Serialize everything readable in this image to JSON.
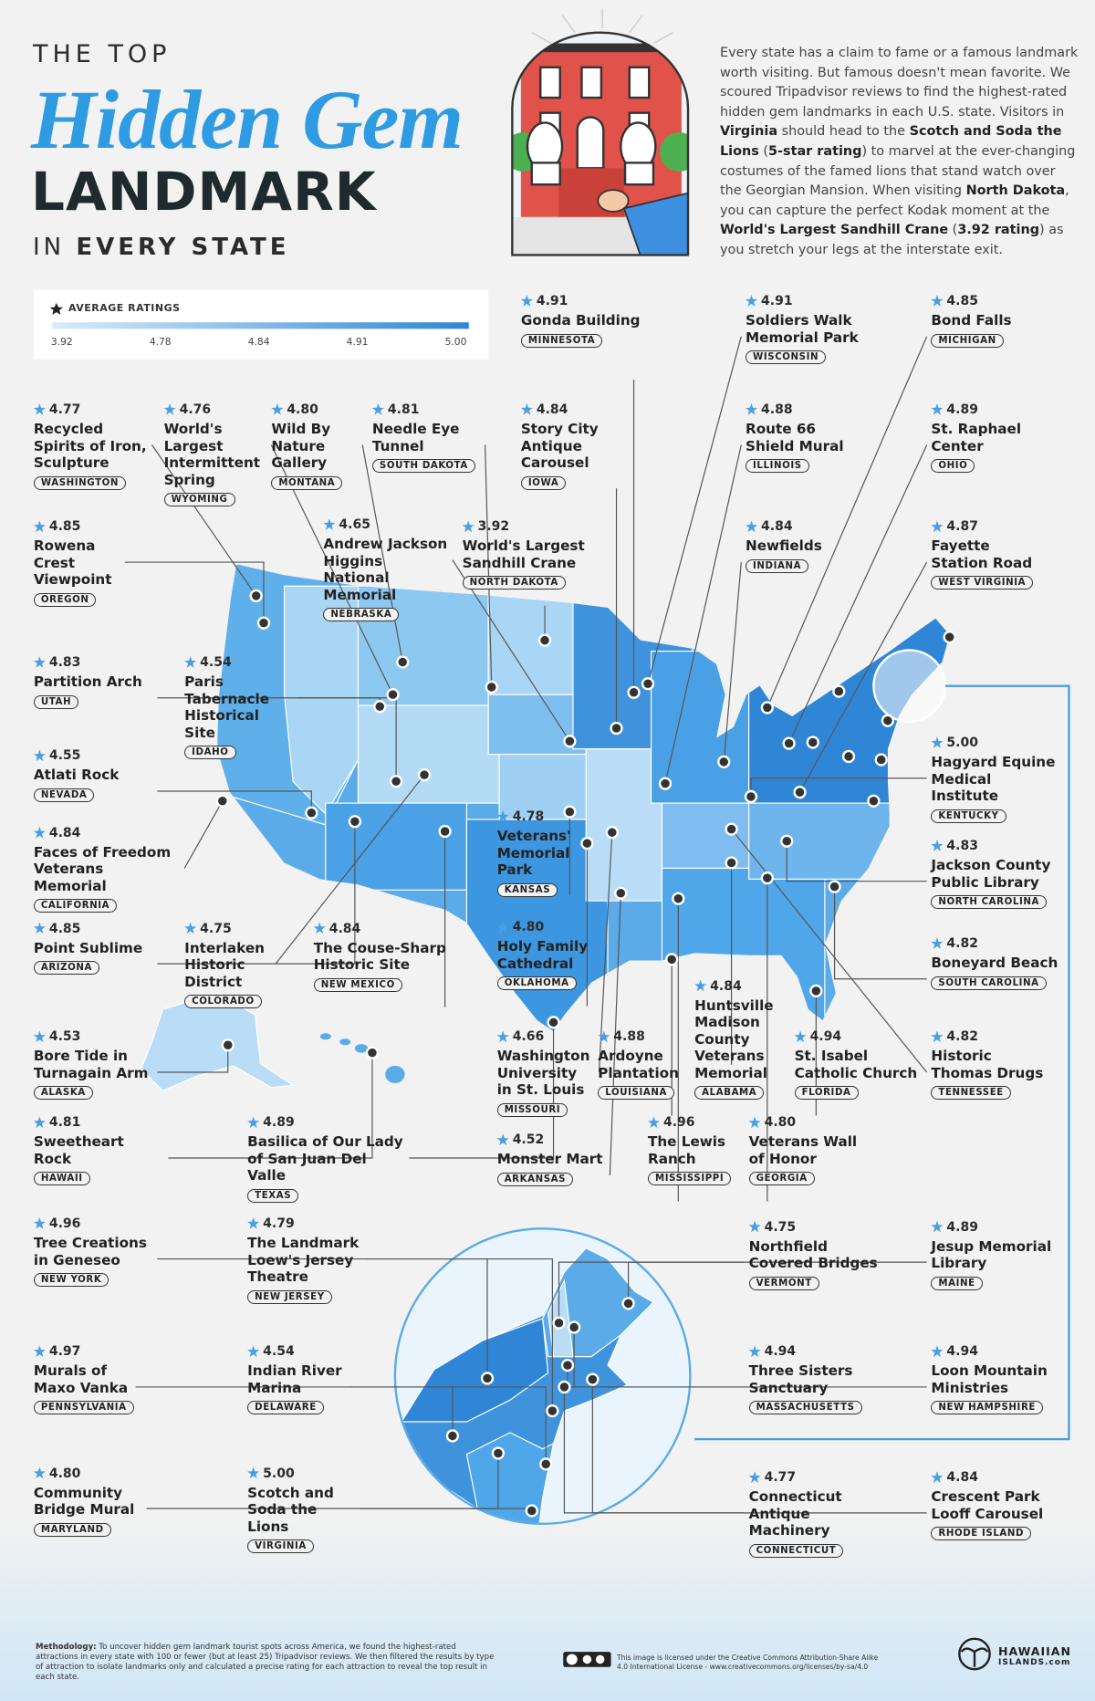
{
  "header": {
    "title_top": "THE TOP",
    "title_script": "Hidden Gem",
    "title_main": "LANDMARK",
    "title_in": "IN",
    "title_bold": "EVERY STATE"
  },
  "intro": [
    {
      "text": "Every state has a claim to fame or a famous landmark worth visiting. But famous doesn't mean favorite. We scoured Tripadvisor reviews to find the highest-rated hidden gem landmarks in each U.S. state. Visitors in ",
      "bold": false
    },
    {
      "text": "Virginia",
      "bold": true
    },
    {
      "text": " should head to the ",
      "bold": false
    },
    {
      "text": "Scotch and Soda the Lions",
      "bold": true
    },
    {
      "text": " (",
      "bold": false
    },
    {
      "text": "5-star rating",
      "bold": true
    },
    {
      "text": ") to marvel at the ever-changing costumes of the famed lions that stand watch over the Georgian Mansion. When visiting ",
      "bold": false
    },
    {
      "text": "North Dakota",
      "bold": true
    },
    {
      "text": ", you can capture the perfect Kodak moment at the ",
      "bold": false
    },
    {
      "text": "World's Largest Sandhill Crane",
      "bold": true
    },
    {
      "text": " (",
      "bold": false
    },
    {
      "text": "3.92 rating",
      "bold": true
    },
    {
      "text": ") as you stretch your legs at the interstate exit.",
      "bold": false
    }
  ],
  "legend": {
    "title": "AVERAGE RATINGS",
    "ticks": [
      "3.92",
      "4.78",
      "4.84",
      "4.91",
      "5.00"
    ]
  },
  "entries": [
    {
      "rating": "4.91",
      "name": "Gonda Building",
      "state": "MINNESOTA"
    },
    {
      "rating": "4.91",
      "name": "Soldiers Walk Memorial Park",
      "state": "WISCONSIN"
    },
    {
      "rating": "4.85",
      "name": "Bond Falls",
      "state": "MICHIGAN"
    },
    {
      "rating": "4.77",
      "name": "Recycled Spirits of Iron, Sculpture",
      "state": "WASHINGTON"
    },
    {
      "rating": "4.76",
      "name": "World's Largest Intermittent Spring",
      "state": "WYOMING"
    },
    {
      "rating": "4.80",
      "name": "Wild By Nature Gallery",
      "state": "MONTANA"
    },
    {
      "rating": "4.81",
      "name": "Needle Eye Tunnel",
      "state": "SOUTH DAKOTA"
    },
    {
      "rating": "4.84",
      "name": "Story City Antique Carousel",
      "state": "IOWA"
    },
    {
      "rating": "4.88",
      "name": "Route 66 Shield Mural",
      "state": "ILLINOIS"
    },
    {
      "rating": "4.89",
      "name": "St. Raphael Center",
      "state": "OHIO"
    },
    {
      "rating": "4.85",
      "name": "Rowena Crest Viewpoint",
      "state": "OREGON"
    },
    {
      "rating": "4.65",
      "name": "Andrew Jackson Higgins National Memorial",
      "state": "NEBRASKA"
    },
    {
      "rating": "3.92",
      "name": "World's Largest Sandhill Crane",
      "state": "NORTH DAKOTA"
    },
    {
      "rating": "4.84",
      "name": "Newfields",
      "state": "INDIANA"
    },
    {
      "rating": "4.87",
      "name": "Fayette Station Road",
      "state": "WEST VIRGINIA"
    },
    {
      "rating": "4.83",
      "name": "Partition Arch",
      "state": "UTAH"
    },
    {
      "rating": "4.54",
      "name": "Paris Tabernacle Historical Site",
      "state": "IDAHO"
    },
    {
      "rating": "5.00",
      "name": "Hagyard Equine Medical Institute",
      "state": "KENTUCKY"
    },
    {
      "rating": "4.55",
      "name": "Atlati Rock",
      "state": "NEVADA"
    },
    {
      "rating": "4.78",
      "name": "Veterans' Memorial Park",
      "state": "KANSAS"
    },
    {
      "rating": "4.83",
      "name": "Jackson County Public Library",
      "state": "NORTH CAROLINA"
    },
    {
      "rating": "4.84",
      "name": "Faces of Freedom Veterans Memorial",
      "state": "CALIFORNIA"
    },
    {
      "rating": "4.80",
      "name": "Holy Family Cathedral",
      "state": "OKLAHOMA"
    },
    {
      "rating": "4.82",
      "name": "Boneyard Beach",
      "state": "SOUTH CAROLINA"
    },
    {
      "rating": "4.85",
      "name": "Point Sublime",
      "state": "ARIZONA"
    },
    {
      "rating": "4.75",
      "name": "Interlaken Historic District",
      "state": "COLORADO"
    },
    {
      "rating": "4.84",
      "name": "The Couse-Sharp Historic Site",
      "state": "NEW MEXICO"
    },
    {
      "rating": "4.84",
      "name": "Huntsville Madison County Veterans Memorial",
      "state": "ALABAMA"
    },
    {
      "rating": "4.53",
      "name": "Bore Tide in Turnagain Arm",
      "state": "ALASKA"
    },
    {
      "rating": "4.66",
      "name": "Washington University in St. Louis",
      "state": "MISSOURI"
    },
    {
      "rating": "4.88",
      "name": "Ardoyne Plantation",
      "state": "LOUISIANA"
    },
    {
      "rating": "4.94",
      "name": "St. Isabel Catholic Church",
      "state": "FLORIDA"
    },
    {
      "rating": "4.82",
      "name": "Historic Thomas Drugs",
      "state": "TENNESSEE"
    },
    {
      "rating": "4.81",
      "name": "Sweetheart Rock",
      "state": "HAWAII"
    },
    {
      "rating": "4.89",
      "name": "Basilica of Our Lady of San Juan Del Valle",
      "state": "TEXAS"
    },
    {
      "rating": "4.52",
      "name": "Monster Mart",
      "state": "ARKANSAS"
    },
    {
      "rating": "4.96",
      "name": "The Lewis Ranch",
      "state": "MISSISSIPPI"
    },
    {
      "rating": "4.80",
      "name": "Veterans Wall of Honor",
      "state": "GEORGIA"
    },
    {
      "rating": "4.96",
      "name": "Tree Creations in Geneseo",
      "state": "NEW YORK"
    },
    {
      "rating": "4.79",
      "name": "The Landmark Loew's Jersey Theatre",
      "state": "NEW JERSEY"
    },
    {
      "rating": "4.75",
      "name": "Northfield Covered Bridges",
      "state": "VERMONT"
    },
    {
      "rating": "4.89",
      "name": "Jesup Memorial Library",
      "state": "MAINE"
    },
    {
      "rating": "4.97",
      "name": "Murals of Maxo Vanka",
      "state": "PENNSYLVANIA"
    },
    {
      "rating": "4.54",
      "name": "Indian River Marina",
      "state": "DELAWARE"
    },
    {
      "rating": "4.94",
      "name": "Three Sisters Sanctuary",
      "state": "MASSACHUSETTS"
    },
    {
      "rating": "4.94",
      "name": "Loon Mountain Ministries",
      "state": "NEW HAMPSHIRE"
    },
    {
      "rating": "4.80",
      "name": "Community Bridge Mural",
      "state": "MARYLAND"
    },
    {
      "rating": "5.00",
      "name": "Scotch and Soda the Lions",
      "state": "VIRGINIA"
    },
    {
      "rating": "4.77",
      "name": "Connecticut Antique Machinery",
      "state": "CONNECTICUT"
    },
    {
      "rating": "4.84",
      "name": "Crescent Park Looff Carousel",
      "state": "RHODE ISLAND"
    }
  ],
  "footer": {
    "methodology_label": "Methodology:",
    "methodology": "To uncover hidden gem landmark tourist spots across America, we found the highest-rated attractions in every state with 100 or fewer (but at least 25) Tripadvisor reviews. We then filtered the results by type of attraction to isolate landmarks only and calculated a precise rating for each attraction to reveal the top result in each state.",
    "license": "This image is licensed under the Creative Commons Attribution-Share Alike 4.0 International License - www.creativecommons.org/licenses/by-sa/4.0",
    "logo": "HAWAIIAN",
    "logo_sub": "ISLANDS.com"
  }
}
